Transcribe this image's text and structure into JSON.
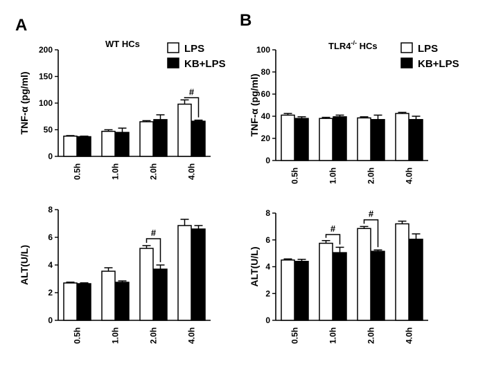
{
  "panels": [
    "A",
    "B"
  ],
  "legend": {
    "series": [
      {
        "name": "LPS",
        "fill": "#ffffff"
      },
      {
        "name": "KB+LPS",
        "fill": "#000000"
      }
    ]
  },
  "chart_data": [
    {
      "id": "A-top",
      "type": "bar",
      "title": "WT HCs",
      "title_sup": "",
      "title_suffix": "",
      "ylabel": "TNF-α (pg/ml)",
      "ylim": [
        0,
        200
      ],
      "yticks": [
        0,
        50,
        100,
        150,
        200
      ],
      "categories": [
        "0.5h",
        "1.0h",
        "2.0h",
        "4.0h"
      ],
      "series": [
        {
          "name": "LPS",
          "values": [
            38,
            47,
            65,
            98
          ],
          "errors": [
            1,
            3,
            2,
            8
          ]
        },
        {
          "name": "KB+LPS",
          "values": [
            37,
            45,
            69,
            66
          ],
          "errors": [
            1,
            8,
            9,
            2
          ]
        }
      ],
      "annotations": [
        {
          "category_index": 3,
          "text": "#",
          "bracket_top": 110
        }
      ],
      "legend": true
    },
    {
      "id": "B-top",
      "type": "bar",
      "title": "TLR4",
      "title_sup": "-/-",
      "title_suffix": " HCs",
      "ylabel": "TNF-α (pg/ml)",
      "ylim": [
        0,
        100
      ],
      "yticks": [
        0,
        20,
        40,
        60,
        80,
        100
      ],
      "categories": [
        "0.5h",
        "1.0h",
        "2.0h",
        "4.0h"
      ],
      "series": [
        {
          "name": "LPS",
          "values": [
            41,
            38,
            38.5,
            42.5
          ],
          "errors": [
            1.5,
            1,
            1,
            1
          ]
        },
        {
          "name": "KB+LPS",
          "values": [
            38,
            39.5,
            37,
            37
          ],
          "errors": [
            1.5,
            1.5,
            4,
            3
          ]
        }
      ],
      "annotations": [],
      "legend": true
    },
    {
      "id": "A-bottom",
      "type": "bar",
      "title": "",
      "title_sup": "",
      "title_suffix": "",
      "ylabel": "ALT(U/L)",
      "ylim": [
        0,
        8
      ],
      "yticks": [
        0,
        2,
        4,
        6,
        8
      ],
      "categories": [
        "0.5h",
        "1.0h",
        "2.0h",
        "4.0h"
      ],
      "series": [
        {
          "name": "LPS",
          "values": [
            2.7,
            3.55,
            5.2,
            6.85
          ],
          "errors": [
            0.06,
            0.25,
            0.2,
            0.45
          ]
        },
        {
          "name": "KB+LPS",
          "values": [
            2.65,
            2.75,
            3.7,
            6.6
          ],
          "errors": [
            0.06,
            0.1,
            0.3,
            0.25
          ]
        }
      ],
      "annotations": [
        {
          "category_index": 2,
          "text": "#",
          "bracket_top": 5.9
        }
      ],
      "legend": false
    },
    {
      "id": "B-bottom",
      "type": "bar",
      "title": "",
      "title_sup": "",
      "title_suffix": "",
      "ylabel": "ALT(U/L)",
      "ylim": [
        0,
        8
      ],
      "yticks": [
        0,
        2,
        4,
        6,
        8
      ],
      "categories": [
        "0.5h",
        "1.0h",
        "2.0h",
        "4.0h"
      ],
      "series": [
        {
          "name": "LPS",
          "values": [
            4.5,
            5.75,
            6.85,
            7.2
          ],
          "errors": [
            0.08,
            0.2,
            0.15,
            0.2
          ]
        },
        {
          "name": "KB+LPS",
          "values": [
            4.4,
            5.05,
            5.15,
            6.05
          ],
          "errors": [
            0.15,
            0.4,
            0.1,
            0.4
          ]
        }
      ],
      "annotations": [
        {
          "category_index": 1,
          "text": "#",
          "bracket_top": 6.4
        },
        {
          "category_index": 2,
          "text": "#",
          "bracket_top": 7.5
        }
      ],
      "legend": false
    }
  ]
}
